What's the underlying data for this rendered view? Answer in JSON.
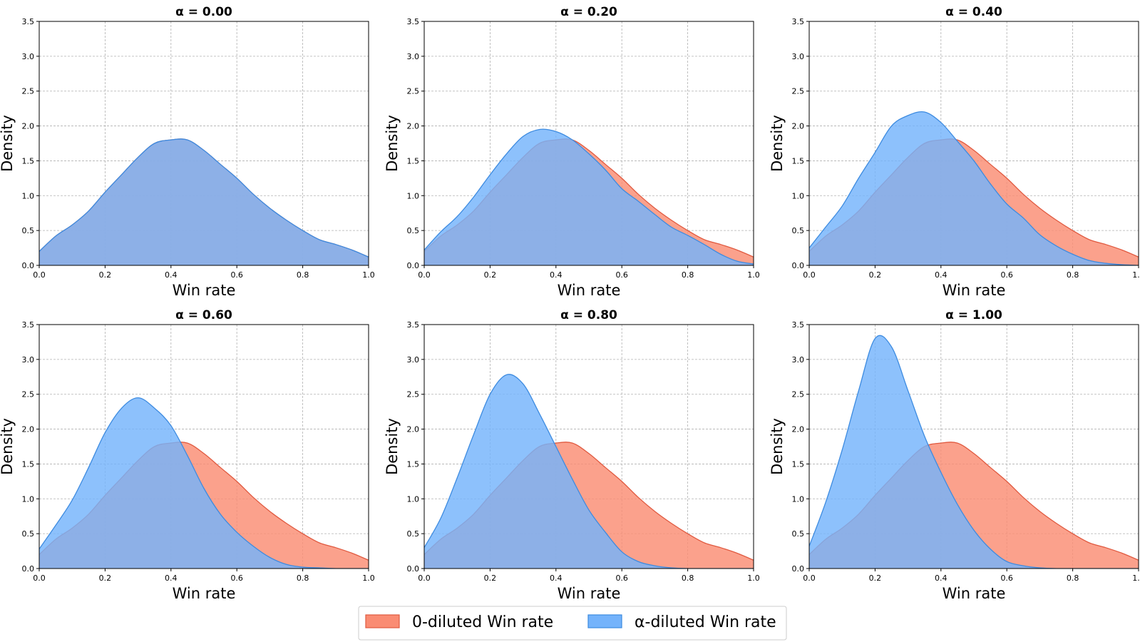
{
  "chart_data": {
    "type": "area",
    "xlabel": "Win rate",
    "ylabel": "Density",
    "xlim": [
      0.0,
      1.0
    ],
    "ylim": [
      0.0,
      3.5
    ],
    "xticks": [
      "0.0",
      "0.2",
      "0.4",
      "0.6",
      "0.8",
      "1.0"
    ],
    "yticks": [
      "0.0",
      "0.5",
      "1.0",
      "1.5",
      "2.0",
      "2.5",
      "3.0",
      "3.5"
    ],
    "grid": true,
    "title_prefix": "α = ",
    "legend": {
      "position": "bottom-center",
      "entries": [
        {
          "label": "0-diluted Win rate",
          "color": "#fa8c73",
          "edge": "#e05a40"
        },
        {
          "label": "α-diluted Win rate",
          "color": "#74b3fb",
          "edge": "#3d8be0"
        }
      ]
    },
    "x": [
      0.0,
      0.05,
      0.1,
      0.15,
      0.2,
      0.25,
      0.3,
      0.35,
      0.4,
      0.45,
      0.5,
      0.55,
      0.6,
      0.65,
      0.7,
      0.75,
      0.8,
      0.85,
      0.9,
      0.95,
      1.0
    ],
    "baseline": {
      "name": "0-diluted Win rate",
      "values": [
        0.2,
        0.42,
        0.58,
        0.78,
        1.05,
        1.3,
        1.55,
        1.75,
        1.8,
        1.8,
        1.65,
        1.45,
        1.25,
        1.02,
        0.82,
        0.65,
        0.5,
        0.37,
        0.3,
        0.22,
        0.12
      ]
    },
    "panels": [
      {
        "alpha": "0.00",
        "series": [
          {
            "name": "α-diluted Win rate",
            "values": [
              0.2,
              0.42,
              0.58,
              0.78,
              1.05,
              1.3,
              1.55,
              1.75,
              1.8,
              1.8,
              1.65,
              1.45,
              1.25,
              1.02,
              0.82,
              0.65,
              0.5,
              0.37,
              0.3,
              0.22,
              0.12
            ]
          }
        ]
      },
      {
        "alpha": "0.20",
        "series": [
          {
            "name": "α-diluted Win rate",
            "values": [
              0.22,
              0.48,
              0.7,
              0.98,
              1.3,
              1.6,
              1.85,
              1.95,
              1.92,
              1.8,
              1.6,
              1.37,
              1.1,
              0.92,
              0.73,
              0.55,
              0.43,
              0.3,
              0.16,
              0.06,
              0.02
            ]
          }
        ]
      },
      {
        "alpha": "0.40",
        "series": [
          {
            "name": "α-diluted Win rate",
            "values": [
              0.25,
              0.55,
              0.85,
              1.25,
              1.62,
              2.0,
              2.15,
              2.2,
              2.05,
              1.78,
              1.5,
              1.17,
              0.88,
              0.68,
              0.44,
              0.28,
              0.16,
              0.07,
              0.03,
              0.01,
              0.0
            ]
          }
        ]
      },
      {
        "alpha": "0.60",
        "series": [
          {
            "name": "α-diluted Win rate",
            "values": [
              0.28,
              0.62,
              0.98,
              1.45,
              1.95,
              2.3,
              2.45,
              2.3,
              2.05,
              1.62,
              1.15,
              0.78,
              0.52,
              0.32,
              0.16,
              0.06,
              0.02,
              0.01,
              0.0,
              0.0,
              0.0
            ]
          }
        ]
      },
      {
        "alpha": "0.80",
        "series": [
          {
            "name": "α-diluted Win rate",
            "values": [
              0.3,
              0.72,
              1.3,
              1.92,
              2.5,
              2.78,
              2.65,
              2.22,
              1.75,
              1.28,
              0.84,
              0.52,
              0.24,
              0.1,
              0.04,
              0.01,
              0.0,
              0.0,
              0.0,
              0.0,
              0.0
            ]
          }
        ]
      },
      {
        "alpha": "1.00",
        "series": [
          {
            "name": "α-diluted Win rate",
            "values": [
              0.32,
              0.95,
              1.7,
              2.55,
              3.3,
              3.18,
              2.55,
              1.9,
              1.38,
              0.92,
              0.55,
              0.28,
              0.1,
              0.04,
              0.01,
              0.0,
              0.0,
              0.0,
              0.0,
              0.0,
              0.0
            ]
          }
        ]
      }
    ]
  }
}
